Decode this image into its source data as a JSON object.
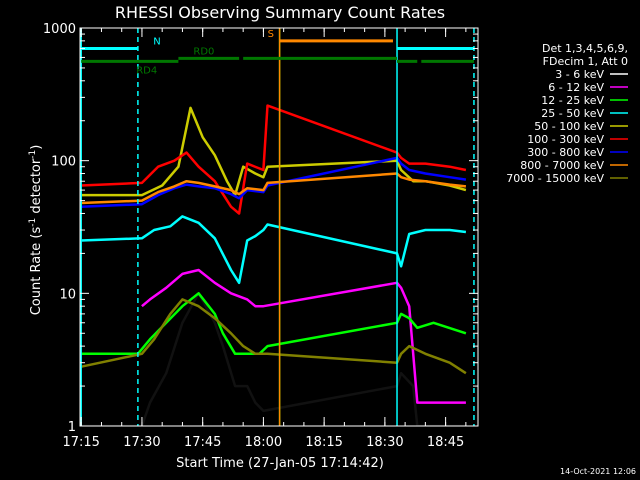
{
  "chart_data": {
    "type": "line",
    "title": "RHESSI Observing Summary Count Rates",
    "xlabel": "Start Time (27-Jan-05 17:14:42)",
    "ylabel_main": "Count Rate (s",
    "ylabel_sup1": "-1",
    "ylabel_mid": " detector",
    "ylabel_sup2": "-1",
    "ylabel_end": ")",
    "y_scale": "log",
    "ylim": [
      1,
      1000
    ],
    "y_ticks": [
      {
        "value": 1,
        "label": "1"
      },
      {
        "value": 10,
        "label": "10"
      },
      {
        "value": 100,
        "label": "100"
      },
      {
        "value": 1000,
        "label": "1000"
      }
    ],
    "xlim": [
      "17:14:42",
      "18:53:00"
    ],
    "x_ticks": [
      {
        "value": "17:15",
        "label": "17:15"
      },
      {
        "value": "17:30",
        "label": "17:30"
      },
      {
        "value": "17:45",
        "label": "17:45"
      },
      {
        "value": "18:00",
        "label": "18:00"
      },
      {
        "value": "18:15",
        "label": "18:15"
      },
      {
        "value": "18:30",
        "label": "18:30"
      },
      {
        "value": "18:45",
        "label": "18:45"
      }
    ],
    "legend_placement": "right",
    "legend_header": [
      "Det 1,3,4,5,6,9,",
      "FDecim 1, Att 0"
    ],
    "series": [
      {
        "name": "3 - 6 keV",
        "color": "#000000",
        "x": [
          "17:15",
          "17:30",
          "17:32",
          "17:36",
          "17:40",
          "17:44",
          "17:48",
          "17:50",
          "17:53",
          "17:56",
          "17:58",
          "18:00",
          "18:33",
          "18:34",
          "18:37",
          "18:38",
          "18:42",
          "18:50"
        ],
        "y": [
          1.0,
          1.0,
          1.5,
          2.5,
          6,
          10,
          6,
          4,
          2,
          2,
          1.5,
          1.3,
          2.0,
          2.5,
          2.0,
          1.0,
          1.0,
          1.0
        ]
      },
      {
        "name": "6 - 12 keV",
        "color": "#ff00ff",
        "x": [
          "17:30",
          "17:32",
          "17:36",
          "17:40",
          "17:44",
          "17:48",
          "17:52",
          "17:56",
          "17:58",
          "18:00",
          "18:33",
          "18:34",
          "18:36",
          "18:38",
          "18:42",
          "18:50"
        ],
        "y": [
          8,
          9,
          11,
          14,
          15,
          12,
          10,
          9,
          8,
          8,
          12,
          11,
          8,
          1.5,
          1.5,
          1.5
        ]
      },
      {
        "name": "12 - 25 keV",
        "color": "#00ff00",
        "x": [
          "17:15",
          "17:29",
          "17:32",
          "17:36",
          "17:40",
          "17:44",
          "17:48",
          "17:50",
          "17:53",
          "17:56",
          "17:59",
          "18:01",
          "18:33",
          "18:34",
          "18:36",
          "18:38",
          "18:42",
          "18:50"
        ],
        "y": [
          3.5,
          3.5,
          4.5,
          6,
          8,
          10,
          7,
          5,
          3.5,
          3.5,
          3.5,
          4,
          6,
          7,
          6.5,
          5.5,
          6,
          5
        ]
      },
      {
        "name": "25 - 50 keV",
        "color": "#00ffff",
        "x": [
          "17:15",
          "17:30",
          "17:33",
          "17:37",
          "17:40",
          "17:44",
          "17:48",
          "17:52",
          "17:54",
          "17:56",
          "17:58",
          "18:00",
          "18:01",
          "18:33",
          "18:34",
          "18:36",
          "18:40",
          "18:46",
          "18:50"
        ],
        "y": [
          25,
          26,
          30,
          32,
          38,
          34,
          26,
          15,
          12,
          25,
          27,
          30,
          33,
          20,
          16,
          28,
          30,
          30,
          29
        ]
      },
      {
        "name": "50 - 100 keV",
        "color": "#cccc00",
        "x": [
          "17:15",
          "17:30",
          "17:35",
          "17:39",
          "17:42",
          "17:45",
          "17:48",
          "17:51",
          "17:53",
          "17:55",
          "17:58",
          "18:00",
          "18:01",
          "18:33",
          "18:34",
          "18:37",
          "18:40",
          "18:46",
          "18:50"
        ],
        "y": [
          55,
          55,
          65,
          90,
          250,
          150,
          110,
          70,
          55,
          90,
          80,
          75,
          90,
          100,
          85,
          70,
          70,
          65,
          60
        ]
      },
      {
        "name": "100 - 300 keV",
        "color": "#ff0000",
        "x": [
          "17:15",
          "17:30",
          "17:34",
          "17:38",
          "17:41",
          "17:44",
          "17:48",
          "17:52",
          "17:54",
          "17:56",
          "18:00",
          "18:01",
          "18:33",
          "18:34",
          "18:36",
          "18:40",
          "18:46",
          "18:50"
        ],
        "y": [
          65,
          68,
          90,
          100,
          115,
          90,
          70,
          45,
          40,
          95,
          85,
          260,
          115,
          105,
          95,
          95,
          90,
          85
        ]
      },
      {
        "name": "300 - 800 keV",
        "color": "#0000ff",
        "x": [
          "17:15",
          "17:30",
          "17:34",
          "17:38",
          "17:41",
          "17:44",
          "17:48",
          "17:52",
          "17:54",
          "17:56",
          "18:00",
          "18:01",
          "18:33",
          "18:34",
          "18:36",
          "18:40",
          "18:46",
          "18:50"
        ],
        "y": [
          45,
          47,
          55,
          62,
          66,
          64,
          62,
          56,
          52,
          60,
          58,
          65,
          105,
          95,
          85,
          80,
          75,
          72
        ]
      },
      {
        "name": "800 - 7000 keV",
        "color": "#ff8800",
        "x": [
          "17:15",
          "17:30",
          "17:34",
          "17:38",
          "17:41",
          "17:44",
          "17:48",
          "17:52",
          "17:54",
          "17:56",
          "18:00",
          "18:01",
          "18:33",
          "18:34",
          "18:36",
          "18:40",
          "18:46",
          "18:50"
        ],
        "y": [
          48,
          50,
          58,
          64,
          70,
          68,
          64,
          60,
          56,
          62,
          60,
          68,
          80,
          75,
          72,
          70,
          66,
          64
        ]
      },
      {
        "name": "7000 - 15000 keV",
        "color": "#808000",
        "x": [
          "17:15",
          "17:30",
          "17:33",
          "17:37",
          "17:40",
          "17:44",
          "17:48",
          "17:52",
          "17:55",
          "17:58",
          "18:01",
          "18:33",
          "18:34",
          "18:36",
          "18:40",
          "18:46",
          "18:50"
        ],
        "y": [
          2.8,
          3.5,
          4.5,
          7,
          9,
          8,
          6.5,
          5,
          4,
          3.5,
          3.5,
          3,
          3.5,
          4,
          3.5,
          3,
          2.5
        ]
      }
    ],
    "vlines": [
      {
        "x": "17:15",
        "color": "#00ffff",
        "style": "solid"
      },
      {
        "x": "17:29",
        "color": "#00ffff",
        "style": "dashed"
      },
      {
        "x": "18:04",
        "color": "#00ff00",
        "style": "solid"
      },
      {
        "x": "18:04",
        "color": "#ff8800",
        "style": "solid"
      },
      {
        "x": "18:33",
        "color": "#00ffff",
        "style": "solid"
      },
      {
        "x": "18:52",
        "color": "#00ffff",
        "style": "dashed"
      }
    ],
    "flag_bars": [
      {
        "label": "N",
        "color": "#00ffff",
        "y": 700,
        "segments": [
          [
            "17:15",
            "17:29"
          ],
          [
            "18:33",
            "18:52"
          ]
        ]
      },
      {
        "label": "S",
        "color": "#ff8800",
        "y": 800,
        "segments": [
          [
            "18:04",
            "18:32"
          ]
        ]
      },
      {
        "label": "RD0",
        "color": "#007700",
        "y": 590,
        "segments": [
          [
            "17:39",
            "17:54"
          ],
          [
            "17:55",
            "18:33"
          ]
        ]
      },
      {
        "label": "RD4",
        "color": "#007700",
        "y": 560,
        "segments": [
          [
            "17:15",
            "17:39"
          ],
          [
            "18:33",
            "18:38"
          ],
          [
            "18:39",
            "18:52"
          ]
        ]
      }
    ]
  },
  "footer_timestamp": "14-Oct-2021 12:06"
}
